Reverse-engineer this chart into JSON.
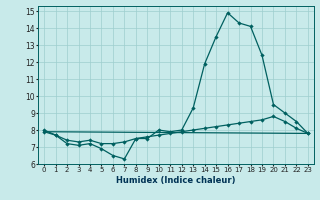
{
  "xlabel": "Humidex (Indice chaleur)",
  "xlim": [
    -0.5,
    23.5
  ],
  "ylim": [
    6,
    15.3
  ],
  "yticks": [
    6,
    7,
    8,
    9,
    10,
    11,
    12,
    13,
    14,
    15
  ],
  "xticks": [
    0,
    1,
    2,
    3,
    4,
    5,
    6,
    7,
    8,
    9,
    10,
    11,
    12,
    13,
    14,
    15,
    16,
    17,
    18,
    19,
    20,
    21,
    22,
    23
  ],
  "bg_color": "#c8eaea",
  "line_color": "#006060",
  "grid_color": "#9ecece",
  "line1_x": [
    0,
    1,
    2,
    3,
    4,
    5,
    6,
    7,
    8,
    9,
    10,
    11,
    12,
    13,
    14,
    15,
    16,
    17,
    18,
    19,
    20,
    21,
    22,
    23
  ],
  "line1_y": [
    8.0,
    7.7,
    7.2,
    7.1,
    7.2,
    6.9,
    6.5,
    6.3,
    7.5,
    7.5,
    8.0,
    7.9,
    8.0,
    9.3,
    11.9,
    13.5,
    14.9,
    14.3,
    14.1,
    12.4,
    9.5,
    9.0,
    8.5,
    7.8
  ],
  "line2_x": [
    0,
    1,
    2,
    3,
    4,
    5,
    6,
    7,
    8,
    9,
    10,
    11,
    12,
    13,
    14,
    15,
    16,
    17,
    18,
    19,
    20,
    21,
    22,
    23
  ],
  "line2_y": [
    7.9,
    7.7,
    7.4,
    7.3,
    7.4,
    7.2,
    7.2,
    7.3,
    7.5,
    7.6,
    7.7,
    7.8,
    7.9,
    8.0,
    8.1,
    8.2,
    8.3,
    8.4,
    8.5,
    8.6,
    8.8,
    8.5,
    8.1,
    7.8
  ],
  "line3_x": [
    0,
    23
  ],
  "line3_y": [
    7.9,
    7.8
  ]
}
